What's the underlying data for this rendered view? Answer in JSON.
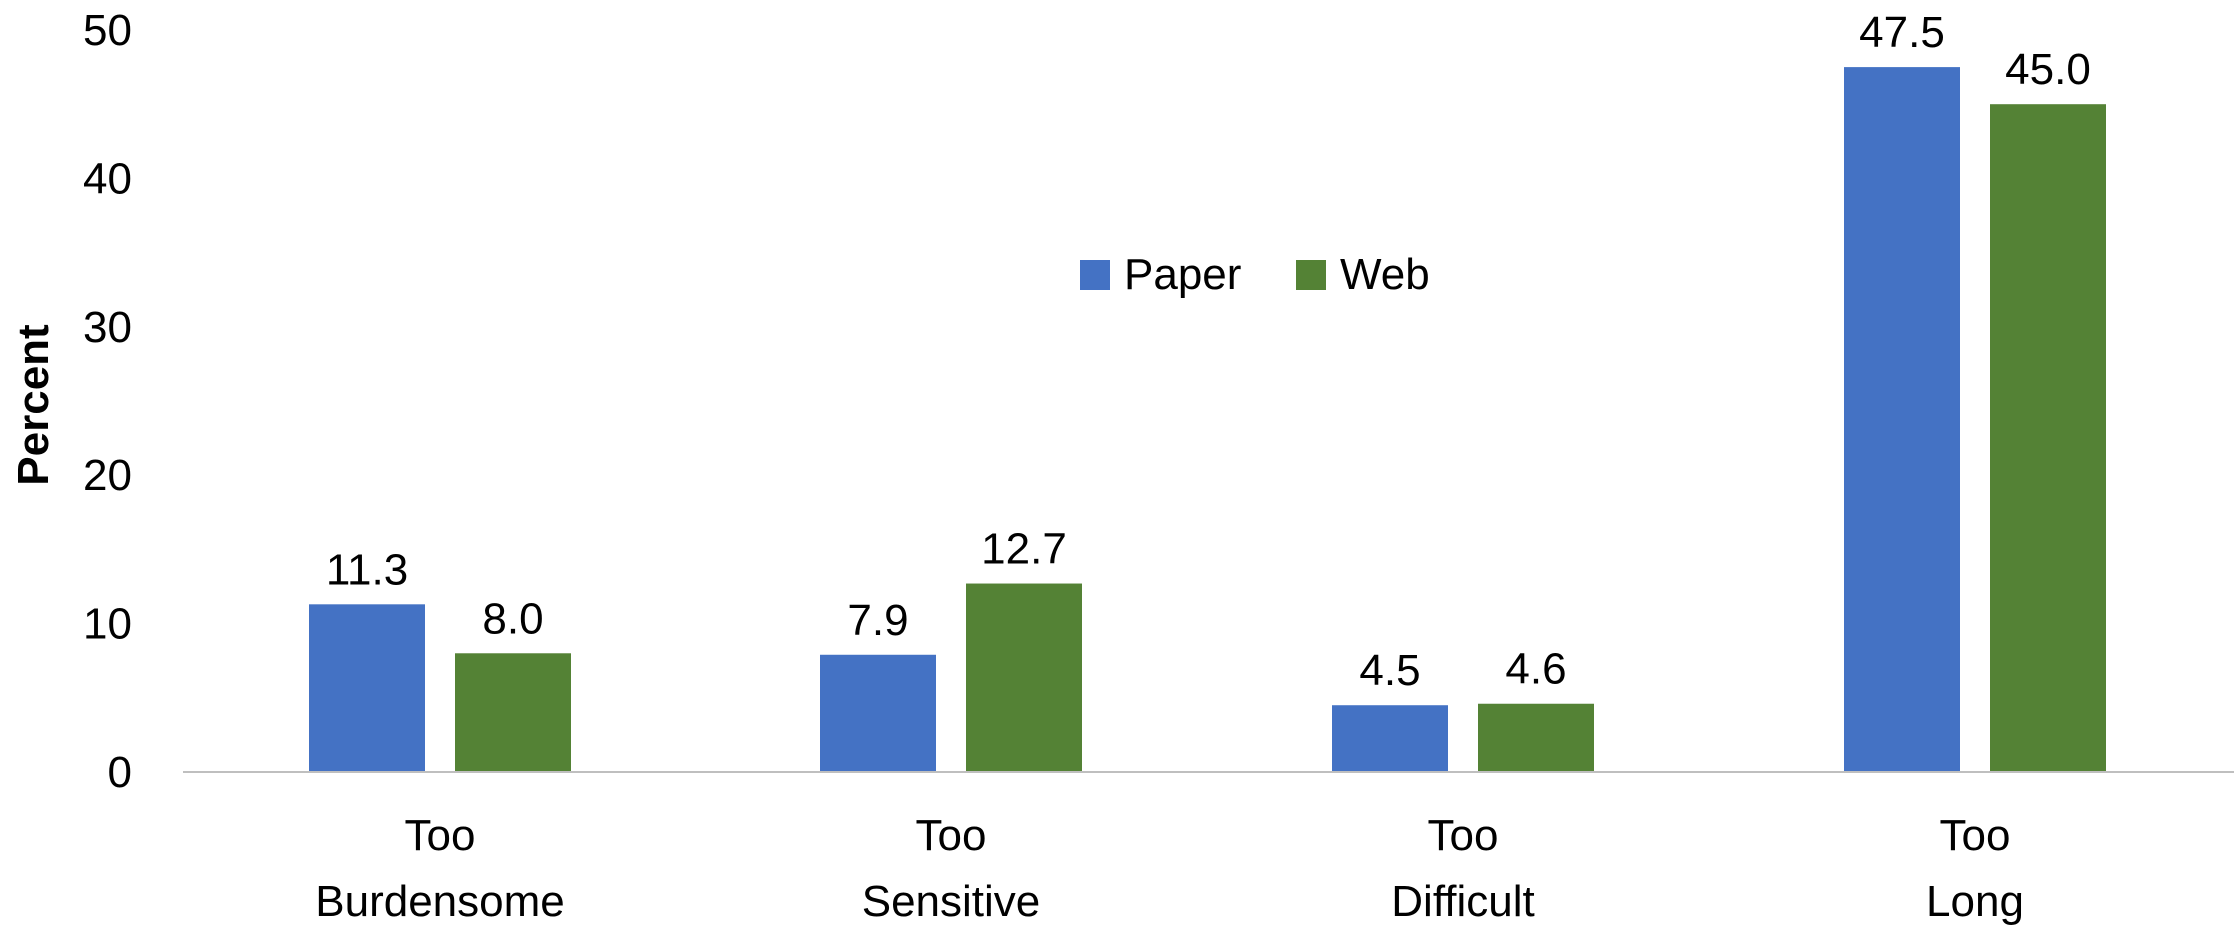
{
  "chart_data": {
    "type": "bar",
    "title": "",
    "xlabel": "",
    "ylabel": "Percent",
    "ylim": [
      0,
      50
    ],
    "yticks": [
      0,
      10,
      20,
      30,
      40,
      50
    ],
    "grid": false,
    "legend_position": "center-top",
    "categories": [
      [
        "Too",
        "Burdensome"
      ],
      [
        "Too",
        "Sensitive"
      ],
      [
        "Too",
        "Difficult"
      ],
      [
        "Too",
        "Long"
      ]
    ],
    "series": [
      {
        "name": "Paper",
        "color": "#4472C4",
        "values": [
          11.3,
          7.9,
          4.5,
          47.5
        ]
      },
      {
        "name": "Web",
        "color": "#548235",
        "values": [
          8.0,
          12.7,
          4.6,
          45.0
        ]
      }
    ],
    "axis_color": "#BFBFBF"
  }
}
